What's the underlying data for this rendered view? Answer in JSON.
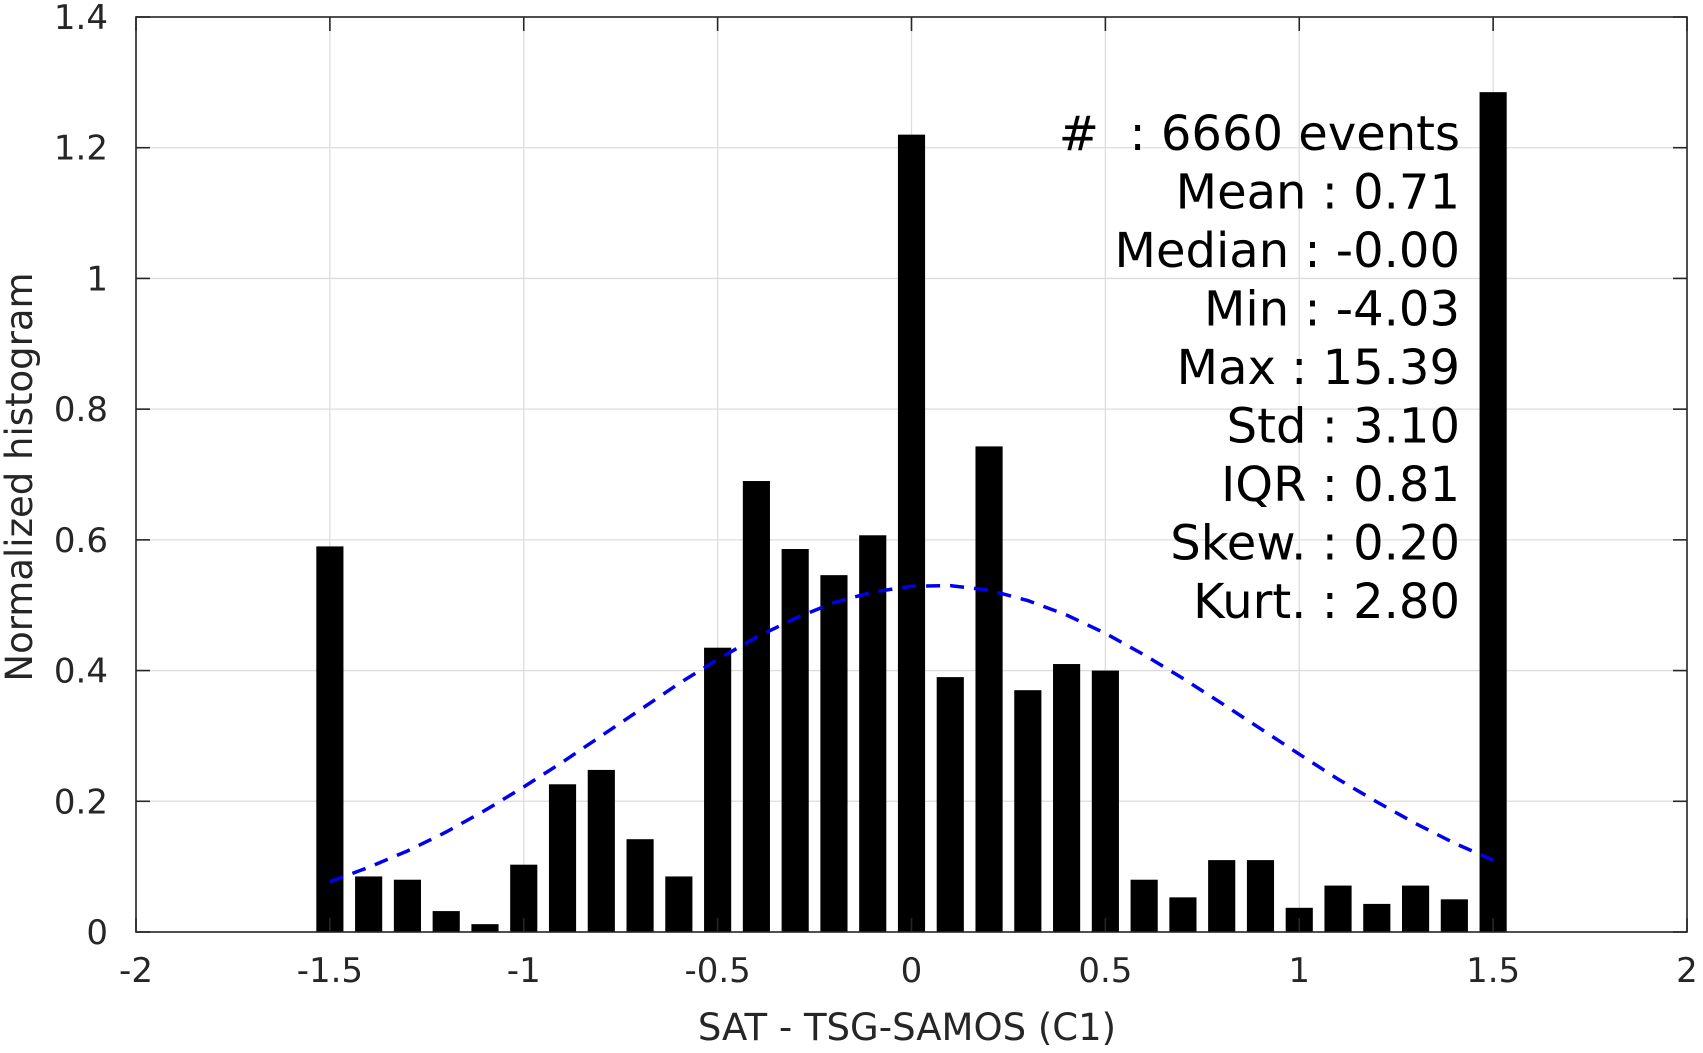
{
  "chart_data": {
    "type": "bar",
    "xlabel": "SAT - TSG-SAMOS (C1)",
    "ylabel": "Normalized histogram",
    "xlim": [
      -2,
      2
    ],
    "ylim": [
      0,
      1.4
    ],
    "xticks": [
      "-2",
      "-1.5",
      "-1",
      "-0.5",
      "0",
      "0.5",
      "1",
      "1.5",
      "2"
    ],
    "yticks": [
      "0",
      "0.2",
      "0.4",
      "0.6",
      "0.8",
      "1",
      "1.2",
      "1.4"
    ],
    "grid": true,
    "bar_color": "#000000",
    "bin_width": 0.1,
    "x": [
      -1.5,
      -1.4,
      -1.3,
      -1.2,
      -1.1,
      -1.0,
      -0.9,
      -0.8,
      -0.7,
      -0.6,
      -0.5,
      -0.4,
      -0.3,
      -0.2,
      -0.1,
      0.0,
      0.1,
      0.2,
      0.3,
      0.4,
      0.5,
      0.6,
      0.7,
      0.8,
      0.9,
      1.0,
      1.1,
      1.2,
      1.3,
      1.4,
      1.5
    ],
    "values": [
      0.59,
      0.085,
      0.08,
      0.032,
      0.012,
      0.103,
      0.226,
      0.248,
      0.142,
      0.085,
      0.435,
      0.69,
      0.586,
      0.546,
      0.607,
      1.22,
      0.39,
      0.743,
      0.37,
      0.41,
      0.4,
      0.08,
      0.053,
      0.11,
      0.11,
      0.037,
      0.071,
      0.043,
      0.071,
      0.05,
      1.285
    ],
    "fit_curve": {
      "style": "dashed",
      "color": "#0000ee",
      "x": [
        -1.5,
        -1.4,
        -1.3,
        -1.2,
        -1.1,
        -1.0,
        -0.9,
        -0.8,
        -0.7,
        -0.6,
        -0.5,
        -0.4,
        -0.3,
        -0.2,
        -0.1,
        0.0,
        0.1,
        0.2,
        0.3,
        0.4,
        0.5,
        0.6,
        0.7,
        0.8,
        0.9,
        1.0,
        1.1,
        1.2,
        1.3,
        1.4,
        1.5
      ],
      "y": [
        0.077,
        0.099,
        0.124,
        0.153,
        0.186,
        0.222,
        0.26,
        0.3,
        0.34,
        0.38,
        0.417,
        0.451,
        0.48,
        0.504,
        0.52,
        0.529,
        0.53,
        0.523,
        0.507,
        0.485,
        0.457,
        0.424,
        0.388,
        0.35,
        0.311,
        0.272,
        0.234,
        0.199,
        0.166,
        0.136,
        0.11
      ]
    },
    "stats": [
      {
        "label": "#  : 6660 events"
      },
      {
        "label": "Mean : 0.71"
      },
      {
        "label": "Median : -0.00"
      },
      {
        "label": "Min : -4.03"
      },
      {
        "label": "Max : 15.39"
      },
      {
        "label": "Std : 3.10"
      },
      {
        "label": "IQR : 0.81"
      },
      {
        "label": "Skew. : 0.20"
      },
      {
        "label": "Kurt. : 2.80"
      }
    ]
  }
}
